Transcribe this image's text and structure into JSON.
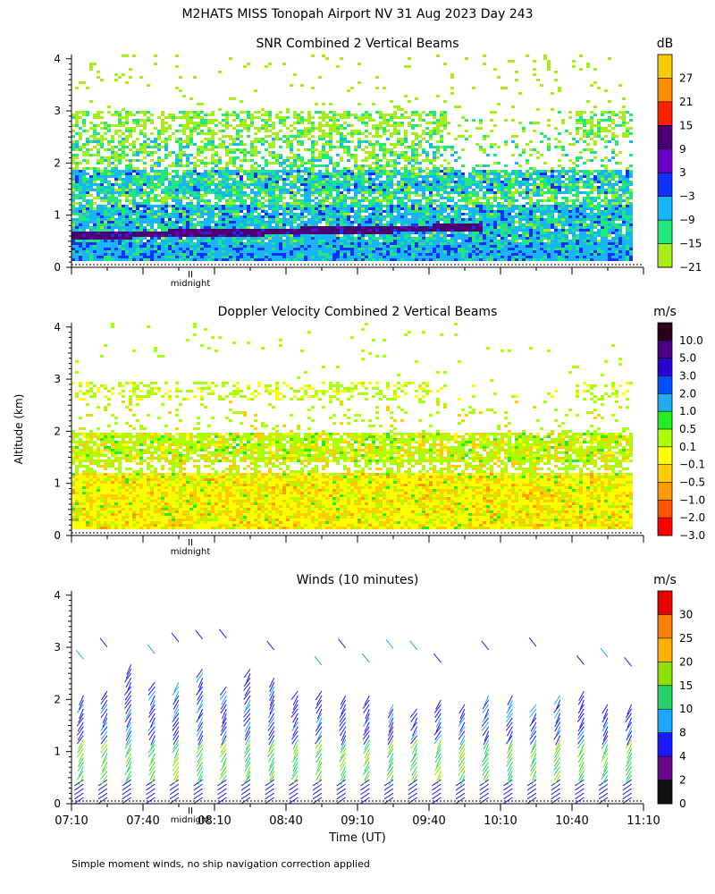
{
  "header": {
    "title": "M2HATS MISS Tonopah Airport NV  31 Aug 2023 Day 243"
  },
  "shared": {
    "y_axis_label": "Altitude (km)",
    "x_axis_label": "Time (UT)",
    "footnote": "Simple moment winds, no ship navigation correction applied",
    "time_ticks": [
      "07:10",
      "07:40",
      "08:10",
      "08:40",
      "09:10",
      "09:40",
      "10:10",
      "10:40",
      "11:10"
    ],
    "altitude_ticks": [
      "0",
      "1",
      "2",
      "3",
      "4"
    ],
    "midnight_label": "midnight"
  },
  "chart_data": [
    {
      "type": "heatmap",
      "title": "SNR Combined 2 Vertical Beams",
      "xlabel": "",
      "ylabel": "Altitude (km)",
      "xlim_hours": [
        7.1667,
        11.1667
      ],
      "ylim_km": [
        0,
        4
      ],
      "units": "dB",
      "colorbar_ticks": [
        "27",
        "21",
        "15",
        "9",
        "3",
        "−3",
        "−9",
        "−15",
        "−21"
      ],
      "colors": [
        "#f5ca00",
        "#ff8c00",
        "#ff2200",
        "#4a0070",
        "#6a00c8",
        "#1030ff",
        "#18b4ff",
        "#22e87a",
        "#a6ee1a"
      ],
      "features": [
        {
          "name": "strong SNR layer",
          "alt_km_start": 0.6,
          "alt_km_end": 0.9,
          "snr_db": 9
        },
        {
          "name": "boundary band",
          "alt_km": 1.6,
          "snr_db": -3
        },
        {
          "name": "upper band",
          "alt_km": 2.8,
          "snr_db": -21
        }
      ]
    },
    {
      "type": "heatmap",
      "title": "Doppler Velocity Combined 2 Vertical Beams",
      "xlabel": "",
      "ylabel": "Altitude (km)",
      "xlim_hours": [
        7.1667,
        11.1667
      ],
      "ylim_km": [
        0,
        4
      ],
      "units": "m/s",
      "colorbar_ticks": [
        "10.0",
        "5.0",
        "3.0",
        "2.0",
        "1.0",
        "0.5",
        "0.1",
        "−0.1",
        "−0.5",
        "−1.0",
        "−2.0",
        "−3.0"
      ],
      "colors": [
        "#2a001a",
        "#4b0082",
        "#2a00d0",
        "#0050ff",
        "#22aaee",
        "#22ee22",
        "#aaff00",
        "#ffff00",
        "#ffcc00",
        "#ff9900",
        "#ff5500",
        "#ff0000"
      ],
      "features": [
        {
          "name": "near-zero velocity layer",
          "alt_km_start": 0.1,
          "alt_km_end": 1.3,
          "velocity_ms": -0.1
        },
        {
          "name": "mid layer",
          "alt_km": 1.7,
          "velocity_ms": 0.1
        }
      ]
    },
    {
      "type": "wind_barbs",
      "title": "Winds (10 minutes)",
      "xlabel": "Time (UT)",
      "ylabel": "Altitude (km)",
      "xlim_hours": [
        7.1667,
        11.1667
      ],
      "ylim_km": [
        0,
        4
      ],
      "interval_minutes": 10,
      "units": "m/s",
      "colorbar_ticks": [
        "30",
        "25",
        "20",
        "15",
        "10",
        "8",
        "4",
        "2",
        "0"
      ],
      "colors": [
        "#e60000",
        "#ff7f00",
        "#ffb000",
        "#8ee000",
        "#22d46a",
        "#18a8ff",
        "#1a1aff",
        "#6a0a8a",
        "#111111"
      ],
      "profile_times_utc": [
        "07:15",
        "07:25",
        "07:35",
        "07:45",
        "07:55",
        "08:05",
        "08:15",
        "08:25",
        "08:35",
        "08:45",
        "08:55",
        "09:05",
        "09:15",
        "09:25",
        "09:35",
        "09:45",
        "09:55",
        "10:05",
        "10:15",
        "10:25",
        "10:35",
        "10:45",
        "10:55",
        "11:05"
      ],
      "typical_profile": {
        "altitudes_km": [
          0.2,
          0.5,
          1.0,
          1.5,
          2.0,
          2.8
        ],
        "speeds_ms": [
          4,
          12,
          14,
          8,
          6,
          10
        ]
      }
    }
  ]
}
